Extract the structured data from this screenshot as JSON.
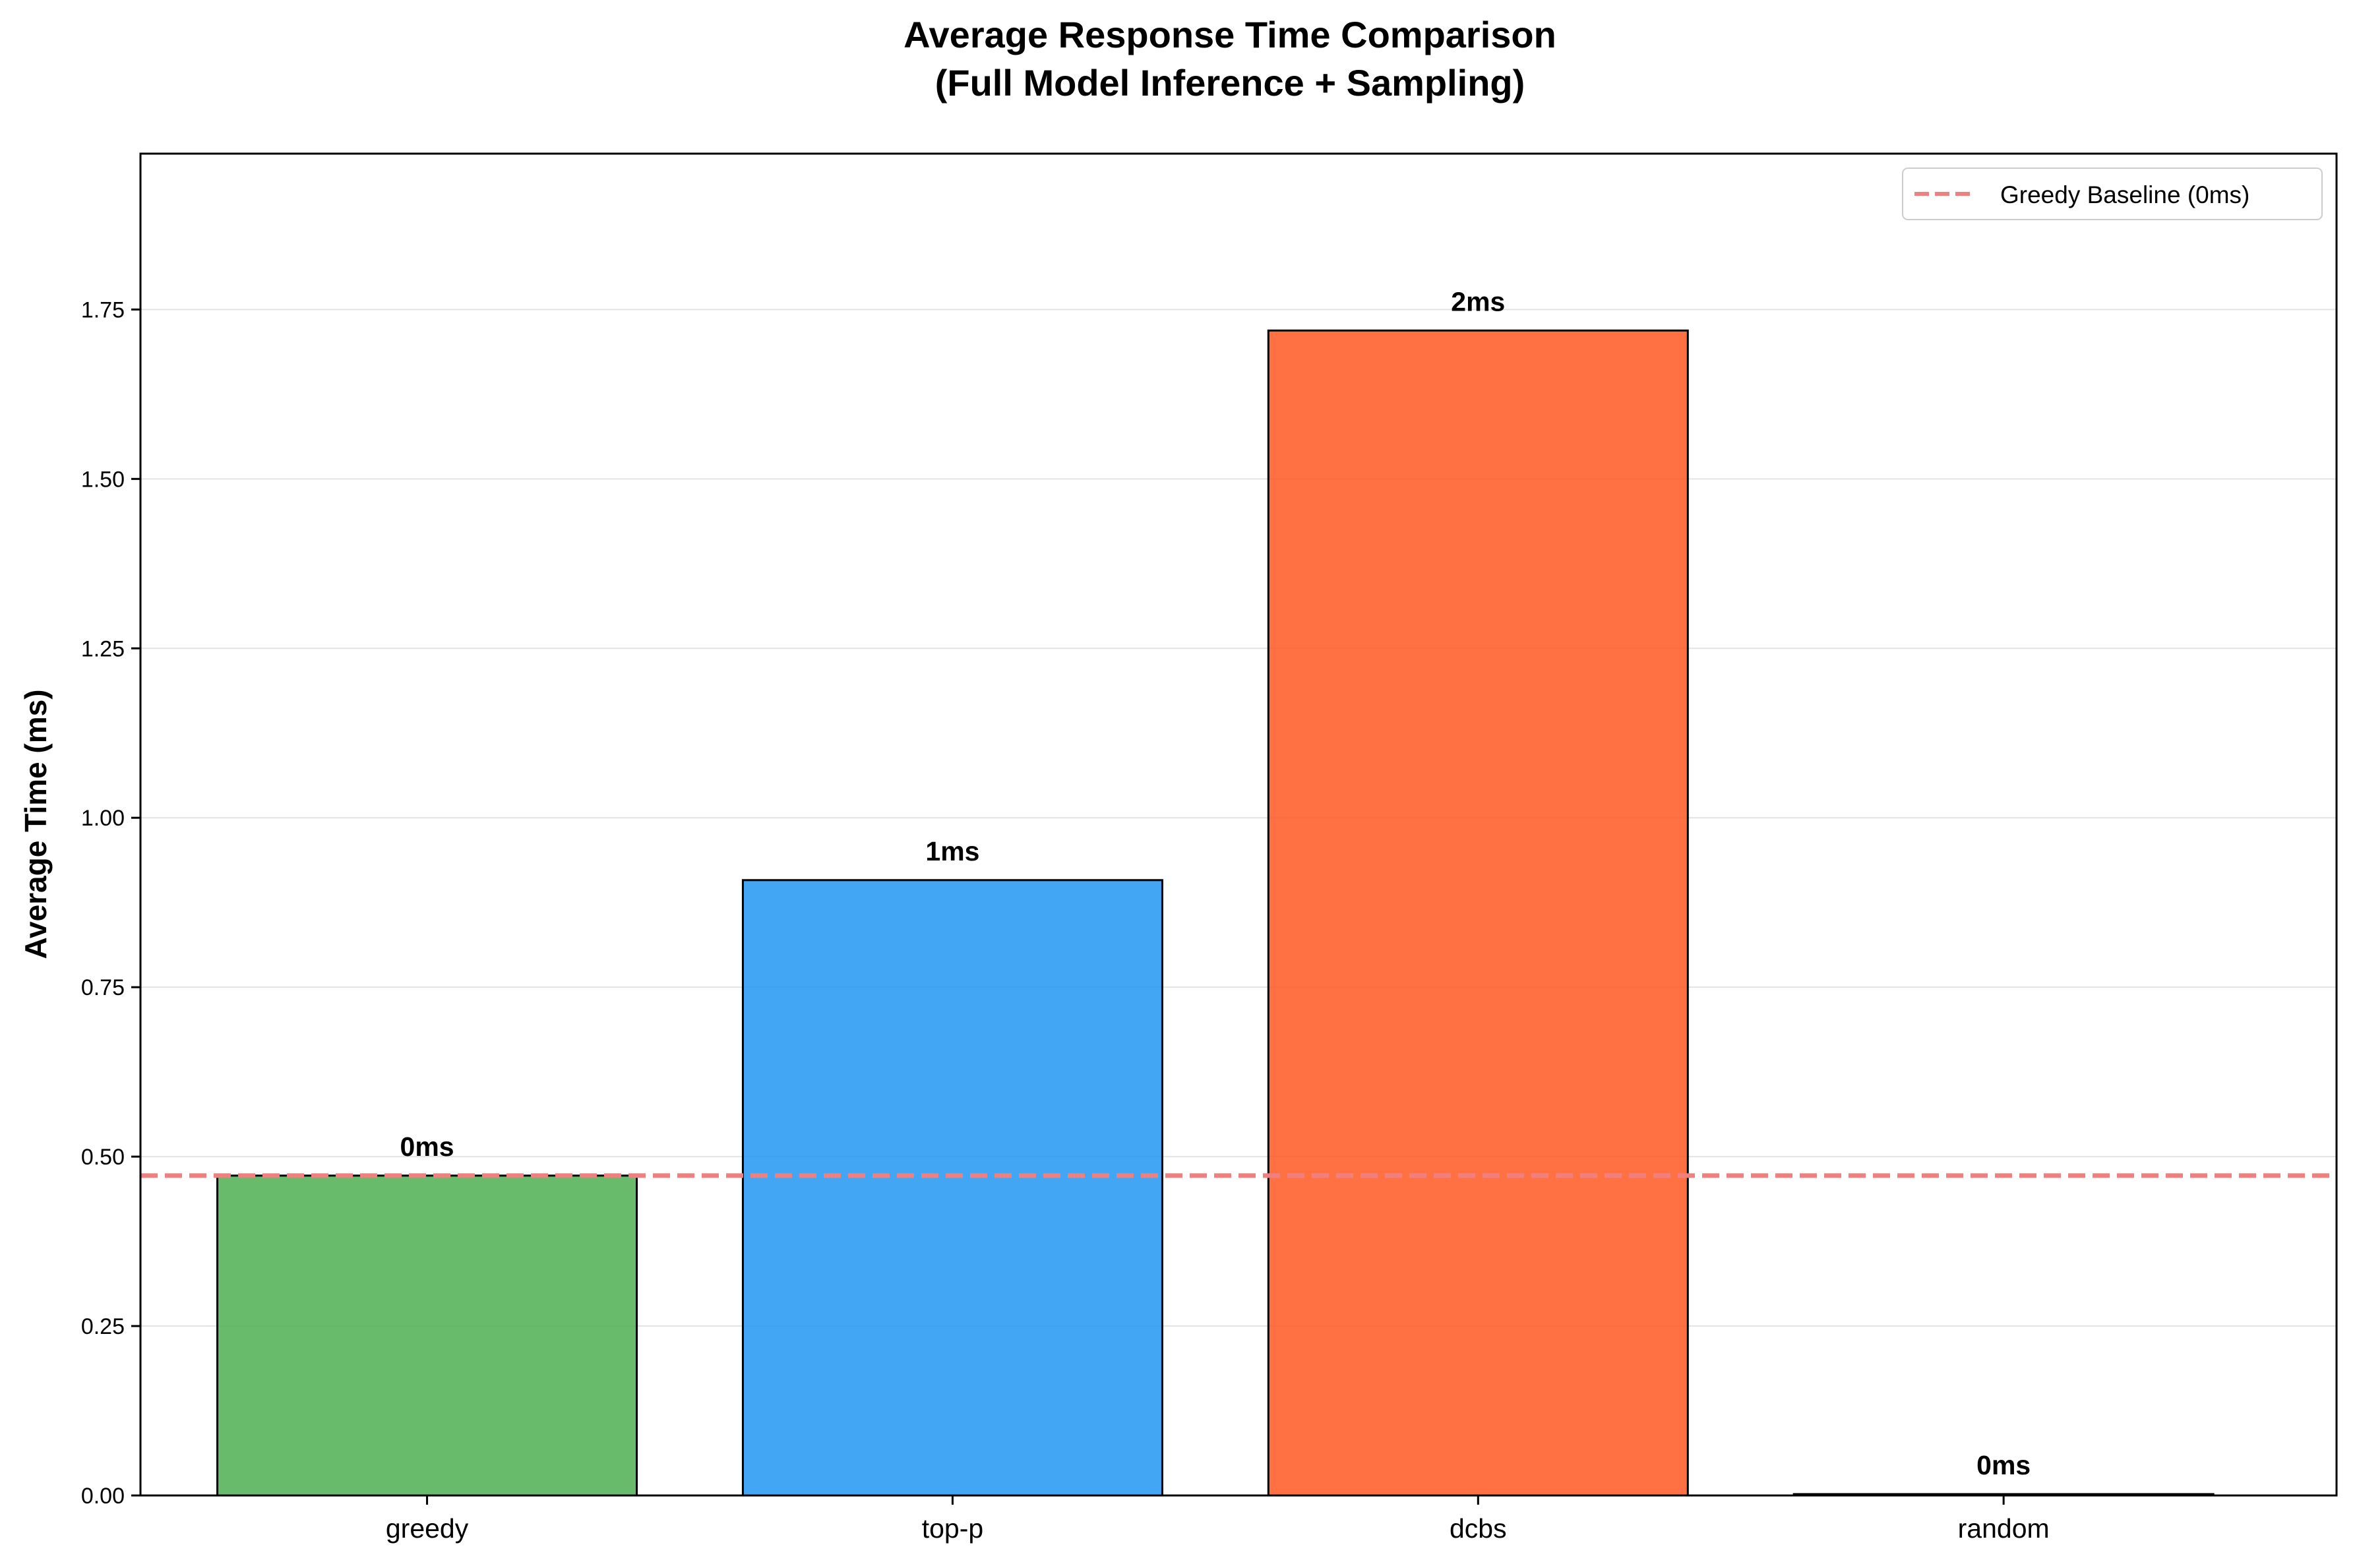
{
  "chart_data": {
    "type": "bar",
    "title_line1": "Average Response Time Comparison",
    "title_line2": "(Full Model Inference + Sampling)",
    "xlabel": "",
    "ylabel": "Average Time (ms)",
    "categories": [
      "greedy",
      "top-p",
      "dcbs",
      "random"
    ],
    "values": [
      0.472,
      0.908,
      1.719,
      0.002
    ],
    "bar_labels": [
      "0ms",
      "1ms",
      "2ms",
      "0ms"
    ],
    "bar_colors": [
      "#4CAF50",
      "#2196F3",
      "#FF5722",
      "#9C27B0"
    ],
    "ylim": [
      0,
      1.98
    ],
    "yticks": [
      0.0,
      0.25,
      0.5,
      0.75,
      1.0,
      1.25,
      1.5,
      1.75
    ],
    "ytick_labels": [
      "0.00",
      "0.25",
      "0.50",
      "0.75",
      "1.00",
      "1.25",
      "1.50",
      "1.75"
    ],
    "grid": "y-axis only",
    "baseline": {
      "value": 0.472,
      "label": "Greedy Baseline (0ms)",
      "color": "#F08080",
      "style": "dashed"
    },
    "legend_position": "top-right"
  }
}
